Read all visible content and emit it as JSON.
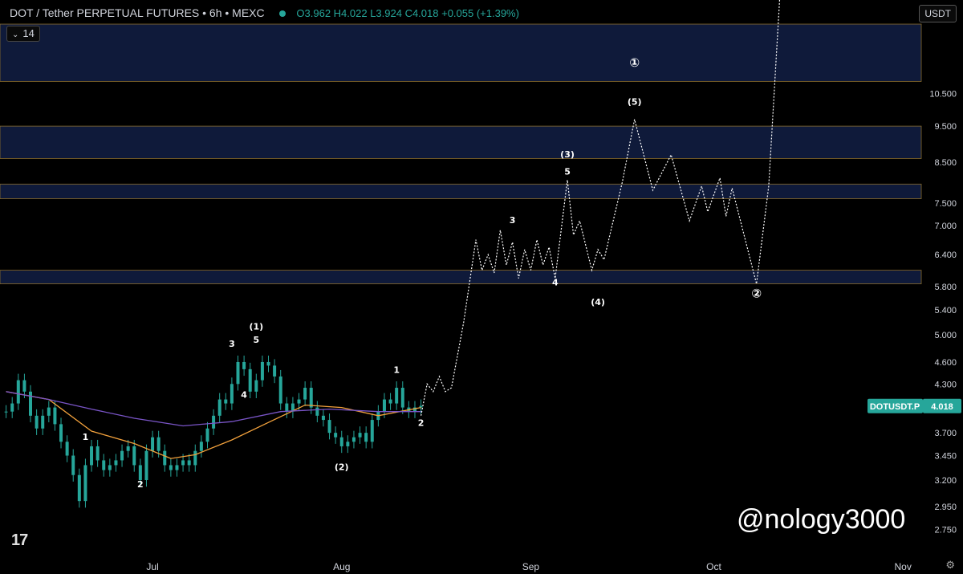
{
  "header": {
    "symbol_title": "DOT / Tether PERPETUAL FUTURES • 6h • MEXC",
    "ohlc": "O3.962  H4.022  L3.924  C4.018  +0.055 (+1.39%)"
  },
  "indicator_chip": {
    "value": "14"
  },
  "currency_button": "USDT",
  "tradingview_logo_text": "17",
  "watermark": "@nology3000",
  "colors": {
    "background": "#000000",
    "zone_fill": "#0f1a3a",
    "zone_border": "#8a6d2e",
    "candle": "#26a69a",
    "ma_orange": "#f2a13c",
    "ma_purple": "#7a55c8",
    "projection": "#ffffff",
    "price_badge": "#26a69a"
  },
  "chart_data": {
    "type": "line",
    "scale": "log",
    "y_tick_labels": [
      "10.500",
      "9.500",
      "8.500",
      "7.500",
      "7.000",
      "6.400",
      "5.800",
      "5.400",
      "5.000",
      "4.600",
      "4.300",
      "3.700",
      "3.450",
      "3.200",
      "2.950",
      "2.750"
    ],
    "x_tick_labels": [
      "Jul",
      "Aug",
      "Sep",
      "Oct",
      "Nov"
    ],
    "price_label": {
      "text": "DOTUSDT.P",
      "value": "4.018"
    },
    "zones": [
      [
        10.9,
        13.0
      ],
      [
        8.6,
        9.5
      ],
      [
        7.6,
        7.95
      ],
      [
        5.85,
        6.1
      ]
    ],
    "candles_close": [
      [
        "2024-06-07",
        3.95
      ],
      [
        "2024-06-08",
        4.05
      ],
      [
        "2024-06-09",
        4.35
      ],
      [
        "2024-06-10",
        4.2
      ],
      [
        "2024-06-11",
        3.9
      ],
      [
        "2024-06-12",
        3.75
      ],
      [
        "2024-06-13",
        3.9
      ],
      [
        "2024-06-14",
        4.0
      ],
      [
        "2024-06-15",
        3.8
      ],
      [
        "2024-06-16",
        3.6
      ],
      [
        "2024-06-17",
        3.45
      ],
      [
        "2024-06-18",
        3.25
      ],
      [
        "2024-06-19",
        3.0
      ],
      [
        "2024-06-20",
        3.35
      ],
      [
        "2024-06-21",
        3.55
      ],
      [
        "2024-06-22",
        3.4
      ],
      [
        "2024-06-23",
        3.3
      ],
      [
        "2024-06-24",
        3.35
      ],
      [
        "2024-06-25",
        3.4
      ],
      [
        "2024-06-26",
        3.5
      ],
      [
        "2024-06-27",
        3.55
      ],
      [
        "2024-06-28",
        3.35
      ],
      [
        "2024-06-29",
        3.2
      ],
      [
        "2024-06-30",
        3.5
      ],
      [
        "2024-07-01",
        3.65
      ],
      [
        "2024-07-02",
        3.5
      ],
      [
        "2024-07-03",
        3.35
      ],
      [
        "2024-07-04",
        3.3
      ],
      [
        "2024-07-05",
        3.35
      ],
      [
        "2024-07-06",
        3.4
      ],
      [
        "2024-07-07",
        3.35
      ],
      [
        "2024-07-08",
        3.5
      ],
      [
        "2024-07-09",
        3.6
      ],
      [
        "2024-07-10",
        3.75
      ],
      [
        "2024-07-11",
        3.9
      ],
      [
        "2024-07-12",
        4.1
      ],
      [
        "2024-07-13",
        4.05
      ],
      [
        "2024-07-14",
        4.3
      ],
      [
        "2024-07-15",
        4.6
      ],
      [
        "2024-07-16",
        4.5
      ],
      [
        "2024-07-17",
        4.2
      ],
      [
        "2024-07-18",
        4.35
      ],
      [
        "2024-07-19",
        4.6
      ],
      [
        "2024-07-20",
        4.55
      ],
      [
        "2024-07-21",
        4.4
      ],
      [
        "2024-07-22",
        4.05
      ],
      [
        "2024-07-23",
        3.95
      ],
      [
        "2024-07-24",
        4.05
      ],
      [
        "2024-07-25",
        4.1
      ],
      [
        "2024-07-26",
        4.25
      ],
      [
        "2024-07-27",
        4.0
      ],
      [
        "2024-07-28",
        3.9
      ],
      [
        "2024-07-29",
        3.85
      ],
      [
        "2024-07-30",
        3.7
      ],
      [
        "2024-07-31",
        3.65
      ],
      [
        "2024-08-01",
        3.55
      ],
      [
        "2024-08-02",
        3.6
      ],
      [
        "2024-08-03",
        3.65
      ],
      [
        "2024-08-04",
        3.7
      ],
      [
        "2024-08-05",
        3.6
      ],
      [
        "2024-08-06",
        3.85
      ],
      [
        "2024-08-07",
        3.95
      ],
      [
        "2024-08-08",
        4.1
      ],
      [
        "2024-08-09",
        4.05
      ],
      [
        "2024-08-10",
        4.25
      ],
      [
        "2024-08-11",
        4.0
      ],
      [
        "2024-08-12",
        3.95
      ],
      [
        "2024-08-13",
        4.0
      ],
      [
        "2024-08-14",
        4.02
      ]
    ],
    "series": [
      {
        "values": [
          [
            "2024-06-07",
            4.2
          ],
          [
            "2024-06-14",
            4.1
          ],
          [
            "2024-06-21",
            3.72
          ],
          [
            "2024-06-28",
            3.58
          ],
          [
            "2024-07-04",
            3.42
          ],
          [
            "2024-07-08",
            3.46
          ],
          [
            "2024-07-14",
            3.62
          ],
          [
            "2024-07-20",
            3.82
          ],
          [
            "2024-07-26",
            4.03
          ],
          [
            "2024-08-01",
            4.0
          ],
          [
            "2024-08-07",
            3.9
          ],
          [
            "2024-08-14",
            4.0
          ]
        ]
      },
      {
        "values": [
          [
            "2024-06-07",
            4.2
          ],
          [
            "2024-06-14",
            4.1
          ],
          [
            "2024-06-21",
            3.98
          ],
          [
            "2024-06-28",
            3.87
          ],
          [
            "2024-07-06",
            3.78
          ],
          [
            "2024-07-14",
            3.83
          ],
          [
            "2024-07-22",
            3.95
          ],
          [
            "2024-07-30",
            3.98
          ],
          [
            "2024-08-07",
            3.95
          ],
          [
            "2024-08-14",
            3.95
          ]
        ]
      },
      {
        "values": [
          [
            "2024-08-14",
            3.9
          ],
          [
            "2024-08-15",
            4.3
          ],
          [
            "2024-08-16",
            4.2
          ],
          [
            "2024-08-17",
            4.4
          ],
          [
            "2024-08-18",
            4.2
          ],
          [
            "2024-08-19",
            4.25
          ],
          [
            "2024-08-21",
            5.2
          ],
          [
            "2024-08-23",
            6.7
          ],
          [
            "2024-08-24",
            6.1
          ],
          [
            "2024-08-25",
            6.4
          ],
          [
            "2024-08-26",
            6.05
          ],
          [
            "2024-08-27",
            6.9
          ],
          [
            "2024-08-28",
            6.2
          ],
          [
            "2024-08-29",
            6.65
          ],
          [
            "2024-08-30",
            5.95
          ],
          [
            "2024-08-31",
            6.5
          ],
          [
            "2024-09-01",
            6.1
          ],
          [
            "2024-09-02",
            6.7
          ],
          [
            "2024-09-03",
            6.2
          ],
          [
            "2024-09-04",
            6.55
          ],
          [
            "2024-09-05",
            5.95
          ],
          [
            "2024-09-07",
            8.05
          ],
          [
            "2024-09-08",
            6.8
          ],
          [
            "2024-09-09",
            7.1
          ],
          [
            "2024-09-11",
            6.1
          ],
          [
            "2024-09-12",
            6.5
          ],
          [
            "2024-09-13",
            6.3
          ],
          [
            "2024-09-16",
            8.0
          ],
          [
            "2024-09-18",
            9.7
          ],
          [
            "2024-09-21",
            7.8
          ],
          [
            "2024-09-24",
            8.7
          ],
          [
            "2024-09-27",
            7.1
          ],
          [
            "2024-09-29",
            7.9
          ],
          [
            "2024-09-30",
            7.3
          ],
          [
            "2024-10-02",
            8.1
          ],
          [
            "2024-10-03",
            7.2
          ],
          [
            "2024-10-04",
            7.85
          ],
          [
            "2024-10-08",
            5.85
          ],
          [
            "2024-10-10",
            7.9
          ],
          [
            "2024-10-12",
            15.0
          ]
        ]
      }
    ],
    "labels": [
      {
        "text": "1",
        "x": "2024-06-20",
        "y": 3.62
      },
      {
        "text": "2",
        "x": "2024-06-29",
        "y": 3.13
      },
      {
        "text": "3",
        "x": "2024-07-14",
        "y": 4.82
      },
      {
        "text": "4",
        "x": "2024-07-16",
        "y": 4.12
      },
      {
        "text": "5",
        "x": "2024-07-18",
        "y": 4.88
      },
      {
        "text": "(1)",
        "x": "2024-07-18",
        "y": 5.08
      },
      {
        "text": "(2)",
        "x": "2024-08-01",
        "y": 3.3
      },
      {
        "text": "1",
        "x": "2024-08-10",
        "y": 4.45
      },
      {
        "text": "2",
        "x": "2024-08-14",
        "y": 3.78
      },
      {
        "text": "3",
        "x": "2024-08-29",
        "y": 7.05
      },
      {
        "text": "4",
        "x": "2024-09-05",
        "y": 5.82
      },
      {
        "text": "5",
        "x": "2024-09-07",
        "y": 8.18
      },
      {
        "text": "(3)",
        "x": "2024-09-07",
        "y": 8.63
      },
      {
        "text": "(4)",
        "x": "2024-09-12",
        "y": 5.48
      },
      {
        "text": "(5)",
        "x": "2024-09-18",
        "y": 10.15
      },
      {
        "text": "①",
        "x": "2024-09-18",
        "y": 11.4
      },
      {
        "text": "②",
        "x": "2024-10-08",
        "y": 5.61
      }
    ]
  }
}
